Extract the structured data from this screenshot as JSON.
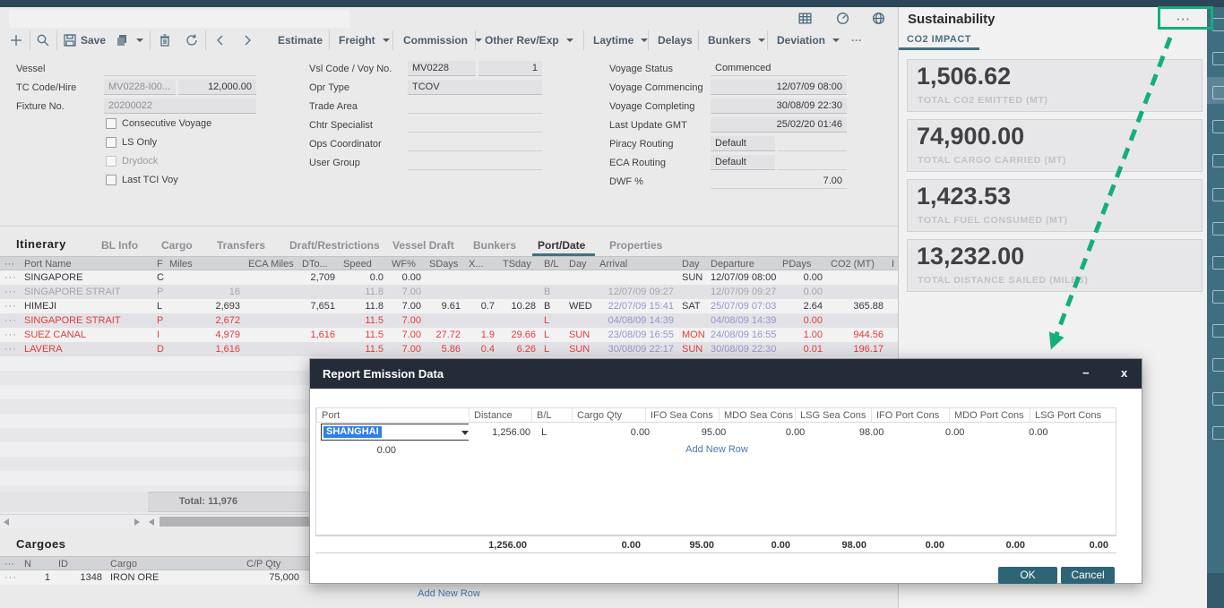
{
  "colors": {
    "accent_green": "#14ae7d",
    "danger_red": "#e03c3c",
    "date_purple": "#9494ce",
    "link_blue": "#4878ab",
    "button_teal": "#2d6576",
    "modal_header": "#232c38",
    "sidebar_teal": "#3f6e81"
  },
  "toolbar": {
    "save_label": "Save",
    "more_label": "···",
    "menus": [
      {
        "label": "Estimate",
        "dropdown": false
      },
      {
        "label": "Freight",
        "dropdown": true
      },
      {
        "label": "Commission",
        "dropdown": true
      },
      {
        "label": "Other Rev/Exp",
        "dropdown": true
      },
      {
        "label": "Laytime",
        "dropdown": true
      },
      {
        "label": "Delays",
        "dropdown": false
      },
      {
        "label": "Bunkers",
        "dropdown": true
      },
      {
        "label": "Deviation",
        "dropdown": true
      }
    ]
  },
  "form": {
    "left": {
      "vessel_label": "Vessel",
      "vessel_value": "",
      "tc_label": "TC Code/Hire",
      "tc_code": "MV0228-I00...",
      "tc_hire": "12,000.00",
      "fixture_label": "Fixture No.",
      "fixture_value": "20200022",
      "checkboxes": [
        {
          "label": "Consecutive Voyage",
          "checked": false
        },
        {
          "label": "LS Only",
          "checked": false
        },
        {
          "label": "Drydock",
          "checked": false
        },
        {
          "label": "Last TCI Voy",
          "checked": false
        }
      ]
    },
    "mid": {
      "rows": [
        {
          "label": "Vsl Code / Voy No.",
          "value": "MV0228",
          "value2": "1"
        },
        {
          "label": "Opr Type",
          "value": "TCOV"
        },
        {
          "label": "Trade Area",
          "value": ""
        },
        {
          "label": "Chtr Specialist",
          "value": ""
        },
        {
          "label": "Ops Coordinator",
          "value": ""
        },
        {
          "label": "User Group",
          "value": ""
        }
      ]
    },
    "right": {
      "rows": [
        {
          "label": "Voyage Status",
          "value": "Commenced"
        },
        {
          "label": "Voyage Commencing",
          "value": "12/07/09 08:00"
        },
        {
          "label": "Voyage Completing",
          "value": "30/08/09 22:30"
        },
        {
          "label": "Last Update GMT",
          "value": "25/02/20 01:46"
        },
        {
          "label": "Piracy Routing",
          "value": "Default",
          "value2": ""
        },
        {
          "label": "ECA Routing",
          "value": "Default",
          "value2": ""
        },
        {
          "label": "DWF %",
          "value": "7.00"
        }
      ]
    }
  },
  "itinerary_tabs": {
    "title": "Itinerary",
    "tabs": [
      "BL Info",
      "Cargo",
      "Transfers",
      "Draft/Restrictions",
      "Vessel Draft",
      "Bunkers",
      "Port/Date",
      "Properties"
    ],
    "active_tab": "Port/Date"
  },
  "itinerary": {
    "columns": [
      "···",
      "Port Name",
      "F",
      "Miles",
      "ECA Miles",
      "DTo...",
      "Speed",
      "WF%",
      "SDays",
      "X...",
      "TSday",
      "B/L",
      "Day",
      "Arrival",
      "Day",
      "Departure",
      "PDays",
      "CO2 (MT)",
      "I"
    ],
    "rows": [
      {
        "state": "current",
        "cells": [
          "···",
          "SINGAPORE",
          "C",
          "",
          "",
          "2,709",
          "0.0",
          "0.00",
          "",
          "",
          "",
          "",
          "",
          "",
          "SUN",
          "12/07/09 08:00",
          "0.00",
          "",
          ""
        ]
      },
      {
        "state": "passed",
        "cells": [
          "···",
          "SINGAPORE STRAIT",
          "P",
          "16",
          "",
          "",
          "11.8",
          "7.00",
          "",
          "",
          "",
          "B",
          "",
          "12/07/09 09:27",
          "",
          "12/07/09 09:27",
          "0.00",
          "",
          ""
        ]
      },
      {
        "state": "active",
        "cells": [
          "···",
          "HIMEJI",
          "L",
          "2,693",
          "",
          "7,651",
          "11.8",
          "7.00",
          "9.61",
          "0.7",
          "10.28",
          "B",
          "WED",
          "22/07/09 15:41",
          "SAT",
          "25/07/09 07:03",
          "2.64",
          "365.88",
          ""
        ]
      },
      {
        "state": "projected",
        "cells": [
          "···",
          "SINGAPORE STRAIT",
          "P",
          "2,672",
          "",
          "",
          "11.5",
          "7.00",
          "",
          "",
          "",
          "L",
          "",
          "04/08/09 14:39",
          "",
          "04/08/09 14:39",
          "0.00",
          "",
          ""
        ]
      },
      {
        "state": "projected",
        "cells": [
          "···",
          "SUEZ CANAL",
          "I",
          "4,979",
          "",
          "1,616",
          "11.5",
          "7.00",
          "27.72",
          "1.9",
          "29.66",
          "L",
          "SUN",
          "23/08/09 16:55",
          "MON",
          "24/08/09 16:55",
          "1.00",
          "944.56",
          ""
        ]
      },
      {
        "state": "projected",
        "cells": [
          "···",
          "LAVERA",
          "D",
          "1,616",
          "",
          "",
          "11.5",
          "7.00",
          "5.86",
          "0.4",
          "6.26",
          "L",
          "SUN",
          "30/08/09 22:17",
          "SUN",
          "30/08/09 22:30",
          "0.01",
          "196.17",
          ""
        ]
      }
    ],
    "total_label": "Total: 11,976"
  },
  "cargoes": {
    "title": "Cargoes",
    "columns": [
      "···",
      "N",
      "ID",
      "Cargo",
      "C/P Qty"
    ],
    "rows": [
      {
        "cells": [
          "···",
          "1",
          "1348",
          "IRON ORE",
          "75,000"
        ]
      }
    ],
    "add_row_label": "Add New Row"
  },
  "sustainability": {
    "title": "Sustainability",
    "more_label": "···",
    "tab": "CO2 IMPACT",
    "cards": [
      {
        "value": "1,506.62",
        "label": "TOTAL CO2 EMITTED (MT)"
      },
      {
        "value": "74,900.00",
        "label": "TOTAL CARGO CARRIED (MT)"
      },
      {
        "value": "1,423.53",
        "label": "TOTAL FUEL CONSUMED (MT)"
      },
      {
        "value": "13,232.00",
        "label": "TOTAL DISTANCE SAILED (MILES)"
      }
    ]
  },
  "modal": {
    "title": "Report Emission Data",
    "minimize_label": "−",
    "close_label": "x",
    "columns": [
      "Port",
      "Distance",
      "B/L",
      "Cargo Qty",
      "IFO Sea Cons",
      "MDO Sea Cons",
      "LSG Sea Cons",
      "IFO Port Cons",
      "MDO Port Cons",
      "LSG Port Cons"
    ],
    "rows": [
      {
        "port": "SHANGHAI",
        "cells": [
          "1,256.00",
          "L",
          "0.00",
          "95.00",
          "0.00",
          "98.00",
          "0.00",
          "0.00",
          "0.00"
        ]
      }
    ],
    "add_row_label": "Add New Row",
    "totals": [
      "1,256.00",
      "",
      "0.00",
      "95.00",
      "0.00",
      "98.00",
      "0.00",
      "0.00",
      "0.00"
    ],
    "ok_label": "OK",
    "cancel_label": "Cancel"
  }
}
